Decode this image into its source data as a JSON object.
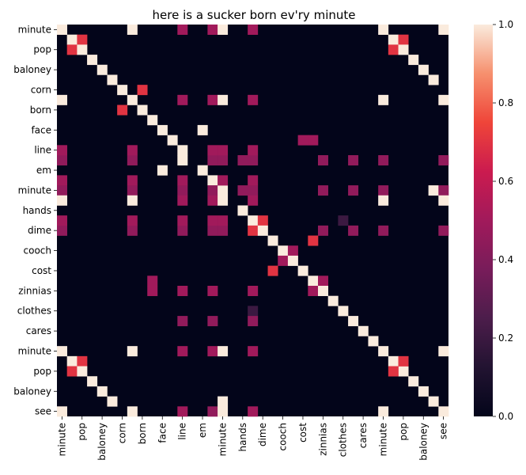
{
  "chart_data": {
    "type": "heatmap",
    "title": "here is a sucker born ev'ry minute",
    "xlabel": "",
    "ylabel": "",
    "size": 39,
    "tick_labels": [
      "minute",
      "pop",
      "baloney",
      "corn",
      "born",
      "face",
      "line",
      "em",
      "minute",
      "hands",
      "dime",
      "cooch",
      "cost",
      "zinnias",
      "clothes",
      "cares",
      "minute",
      "pop",
      "baloney",
      "see"
    ],
    "tick_indices": [
      0,
      2,
      4,
      6,
      8,
      10,
      12,
      14,
      16,
      18,
      20,
      22,
      24,
      26,
      28,
      30,
      32,
      34,
      36,
      38
    ],
    "colorbar": {
      "min": 0.0,
      "max": 1.0,
      "ticks": [
        "0.0",
        "0.2",
        "0.4",
        "0.6",
        "0.8",
        "1.0"
      ],
      "colormap": "rocket"
    },
    "cells": [
      [
        0,
        0,
        1
      ],
      [
        0,
        7,
        1
      ],
      [
        0,
        12,
        0.5
      ],
      [
        0,
        15,
        0.5
      ],
      [
        0,
        16,
        1
      ],
      [
        0,
        19,
        0.5
      ],
      [
        0,
        32,
        1
      ],
      [
        0,
        38,
        1
      ],
      [
        1,
        1,
        1
      ],
      [
        1,
        2,
        0.7
      ],
      [
        1,
        33,
        1
      ],
      [
        1,
        34,
        0.7
      ],
      [
        2,
        1,
        0.7
      ],
      [
        2,
        2,
        1
      ],
      [
        2,
        33,
        0.7
      ],
      [
        2,
        34,
        1
      ],
      [
        3,
        3,
        1
      ],
      [
        3,
        35,
        1
      ],
      [
        4,
        4,
        1
      ],
      [
        4,
        36,
        1
      ],
      [
        5,
        5,
        1
      ],
      [
        5,
        37,
        1
      ],
      [
        6,
        6,
        1
      ],
      [
        6,
        8,
        0.7
      ],
      [
        7,
        0,
        1
      ],
      [
        7,
        7,
        1
      ],
      [
        7,
        12,
        0.5
      ],
      [
        7,
        15,
        0.5
      ],
      [
        7,
        16,
        1
      ],
      [
        7,
        19,
        0.5
      ],
      [
        7,
        32,
        1
      ],
      [
        7,
        38,
        1
      ],
      [
        8,
        6,
        0.7
      ],
      [
        8,
        8,
        1
      ],
      [
        9,
        9,
        1
      ],
      [
        10,
        10,
        1
      ],
      [
        10,
        14,
        1
      ],
      [
        11,
        11,
        1
      ],
      [
        11,
        24,
        0.5
      ],
      [
        11,
        25,
        0.5
      ],
      [
        12,
        12,
        1
      ],
      [
        13,
        0,
        0.45
      ],
      [
        13,
        7,
        0.45
      ],
      [
        13,
        12,
        1
      ],
      [
        13,
        15,
        0.45
      ],
      [
        13,
        16,
        0.45
      ],
      [
        13,
        18,
        0.45
      ],
      [
        13,
        19,
        0.45
      ],
      [
        13,
        26,
        0.45
      ],
      [
        13,
        29,
        0.45
      ],
      [
        13,
        32,
        0.45
      ],
      [
        13,
        38,
        0.45
      ],
      [
        14,
        10,
        1
      ],
      [
        14,
        14,
        1
      ],
      [
        15,
        15,
        1
      ],
      [
        16,
        0,
        0.45
      ],
      [
        16,
        7,
        0.45
      ],
      [
        16,
        12,
        0.45
      ],
      [
        16,
        15,
        0.45
      ],
      [
        16,
        16,
        1
      ],
      [
        16,
        18,
        0.45
      ],
      [
        16,
        19,
        0.45
      ],
      [
        16,
        26,
        0.45
      ],
      [
        16,
        29,
        0.45
      ],
      [
        16,
        32,
        0.45
      ],
      [
        16,
        37,
        1
      ],
      [
        16,
        38,
        0.45
      ],
      [
        17,
        0,
        1
      ],
      [
        17,
        7,
        1
      ],
      [
        17,
        12,
        0.5
      ],
      [
        17,
        15,
        0.5
      ],
      [
        17,
        16,
        1
      ],
      [
        17,
        19,
        0.5
      ],
      [
        17,
        32,
        1
      ],
      [
        17,
        38,
        1
      ],
      [
        18,
        18,
        1
      ],
      [
        19,
        19,
        1
      ],
      [
        19,
        20,
        0.7
      ],
      [
        19,
        28,
        0.2
      ],
      [
        20,
        0,
        0.45
      ],
      [
        20,
        7,
        0.45
      ],
      [
        20,
        12,
        0.45
      ],
      [
        20,
        15,
        0.45
      ],
      [
        20,
        16,
        0.45
      ],
      [
        20,
        19,
        0.7
      ],
      [
        20,
        20,
        1
      ],
      [
        20,
        26,
        0.45
      ],
      [
        20,
        29,
        0.45
      ],
      [
        20,
        32,
        0.45
      ],
      [
        20,
        38,
        0.45
      ],
      [
        21,
        21,
        1
      ],
      [
        21,
        25,
        0.7
      ],
      [
        22,
        22,
        1
      ],
      [
        22,
        23,
        0.5
      ],
      [
        23,
        22,
        0.5
      ],
      [
        23,
        23,
        1
      ],
      [
        24,
        21,
        0.7
      ],
      [
        24,
        24,
        1
      ],
      [
        25,
        9,
        0.5
      ],
      [
        25,
        25,
        1
      ],
      [
        25,
        26,
        0.5
      ],
      [
        26,
        9,
        0.5
      ],
      [
        26,
        25,
        0.5
      ],
      [
        26,
        26,
        1
      ],
      [
        27,
        27,
        1
      ],
      [
        28,
        28,
        1
      ],
      [
        29,
        29,
        1
      ],
      [
        30,
        30,
        1
      ],
      [
        31,
        31,
        1
      ],
      [
        32,
        32,
        1
      ],
      [
        33,
        33,
        1
      ],
      [
        34,
        34,
        1
      ],
      [
        35,
        35,
        1
      ],
      [
        36,
        36,
        1
      ],
      [
        37,
        37,
        1
      ],
      [
        38,
        38,
        1
      ],
      [
        12,
        0,
        0.5
      ],
      [
        12,
        7,
        0.5
      ],
      [
        12,
        15,
        0.5
      ],
      [
        12,
        16,
        0.5
      ],
      [
        12,
        19,
        0.5
      ],
      [
        15,
        0,
        0.5
      ],
      [
        15,
        7,
        0.5
      ],
      [
        15,
        12,
        0.5
      ],
      [
        15,
        16,
        0.5
      ],
      [
        15,
        19,
        0.5
      ],
      [
        19,
        0,
        0.5
      ],
      [
        19,
        7,
        0.5
      ],
      [
        19,
        12,
        0.5
      ],
      [
        19,
        15,
        0.5
      ],
      [
        19,
        16,
        0.5
      ],
      [
        26,
        12,
        0.5
      ],
      [
        26,
        15,
        0.5
      ],
      [
        26,
        19,
        0.5
      ],
      [
        28,
        19,
        0.2
      ],
      [
        29,
        12,
        0.45
      ],
      [
        29,
        15,
        0.45
      ],
      [
        29,
        19,
        0.45
      ],
      [
        32,
        0,
        1
      ],
      [
        32,
        7,
        1
      ],
      [
        32,
        12,
        0.5
      ],
      [
        32,
        15,
        0.5
      ],
      [
        32,
        16,
        1
      ],
      [
        32,
        19,
        0.5
      ],
      [
        32,
        38,
        1
      ],
      [
        33,
        1,
        1
      ],
      [
        33,
        2,
        0.7
      ],
      [
        33,
        34,
        0.7
      ],
      [
        34,
        1,
        0.7
      ],
      [
        34,
        2,
        1
      ],
      [
        34,
        33,
        0.7
      ],
      [
        35,
        3,
        1
      ],
      [
        36,
        4,
        1
      ],
      [
        37,
        5,
        1
      ],
      [
        37,
        16,
        1
      ],
      [
        38,
        0,
        1
      ],
      [
        38,
        7,
        1
      ],
      [
        38,
        12,
        0.5
      ],
      [
        38,
        15,
        0.45
      ],
      [
        38,
        16,
        1
      ],
      [
        38,
        19,
        0.5
      ],
      [
        38,
        32,
        1
      ]
    ]
  }
}
